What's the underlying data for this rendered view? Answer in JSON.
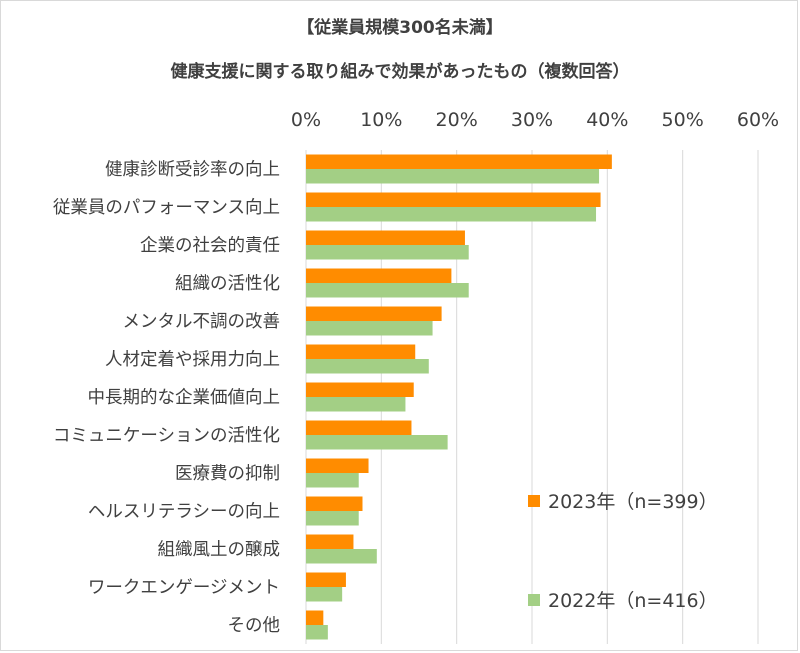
{
  "chart_data": {
    "type": "bar",
    "orientation": "horizontal",
    "title": "【従業員規模300名未満】",
    "subtitle": "健康支援に関する取り組みで効果があったもの（複数回答）",
    "xlim": [
      0,
      60
    ],
    "x_ticks": [
      "0%",
      "10%",
      "20%",
      "30%",
      "40%",
      "50%",
      "60%"
    ],
    "grid": true,
    "legend_position": "right",
    "categories": [
      "健康診断受診率の向上",
      "従業員のパフォーマンス向上",
      "企業の社会的責任",
      "組織の活性化",
      "メンタル不調の改善",
      "人材定着や採用力向上",
      "中長期的な企業価値向上",
      "コミュニケーションの活性化",
      "医療費の抑制",
      "ヘルスリテラシーの向上",
      "組織風土の醸成",
      "ワークエンゲージメント",
      "その他"
    ],
    "series": [
      {
        "name": "2023年（n=399）",
        "color": "#FF8C00",
        "values": [
          40.6,
          39.1,
          21.1,
          19.3,
          18.0,
          14.5,
          14.3,
          14.0,
          8.3,
          7.5,
          6.3,
          5.3,
          2.3
        ]
      },
      {
        "name": "2022年（n=416）",
        "color": "#A3CF85",
        "values": [
          38.9,
          38.5,
          21.6,
          21.6,
          16.8,
          16.3,
          13.2,
          18.8,
          7.0,
          7.0,
          9.4,
          4.8,
          2.9
        ]
      }
    ]
  }
}
